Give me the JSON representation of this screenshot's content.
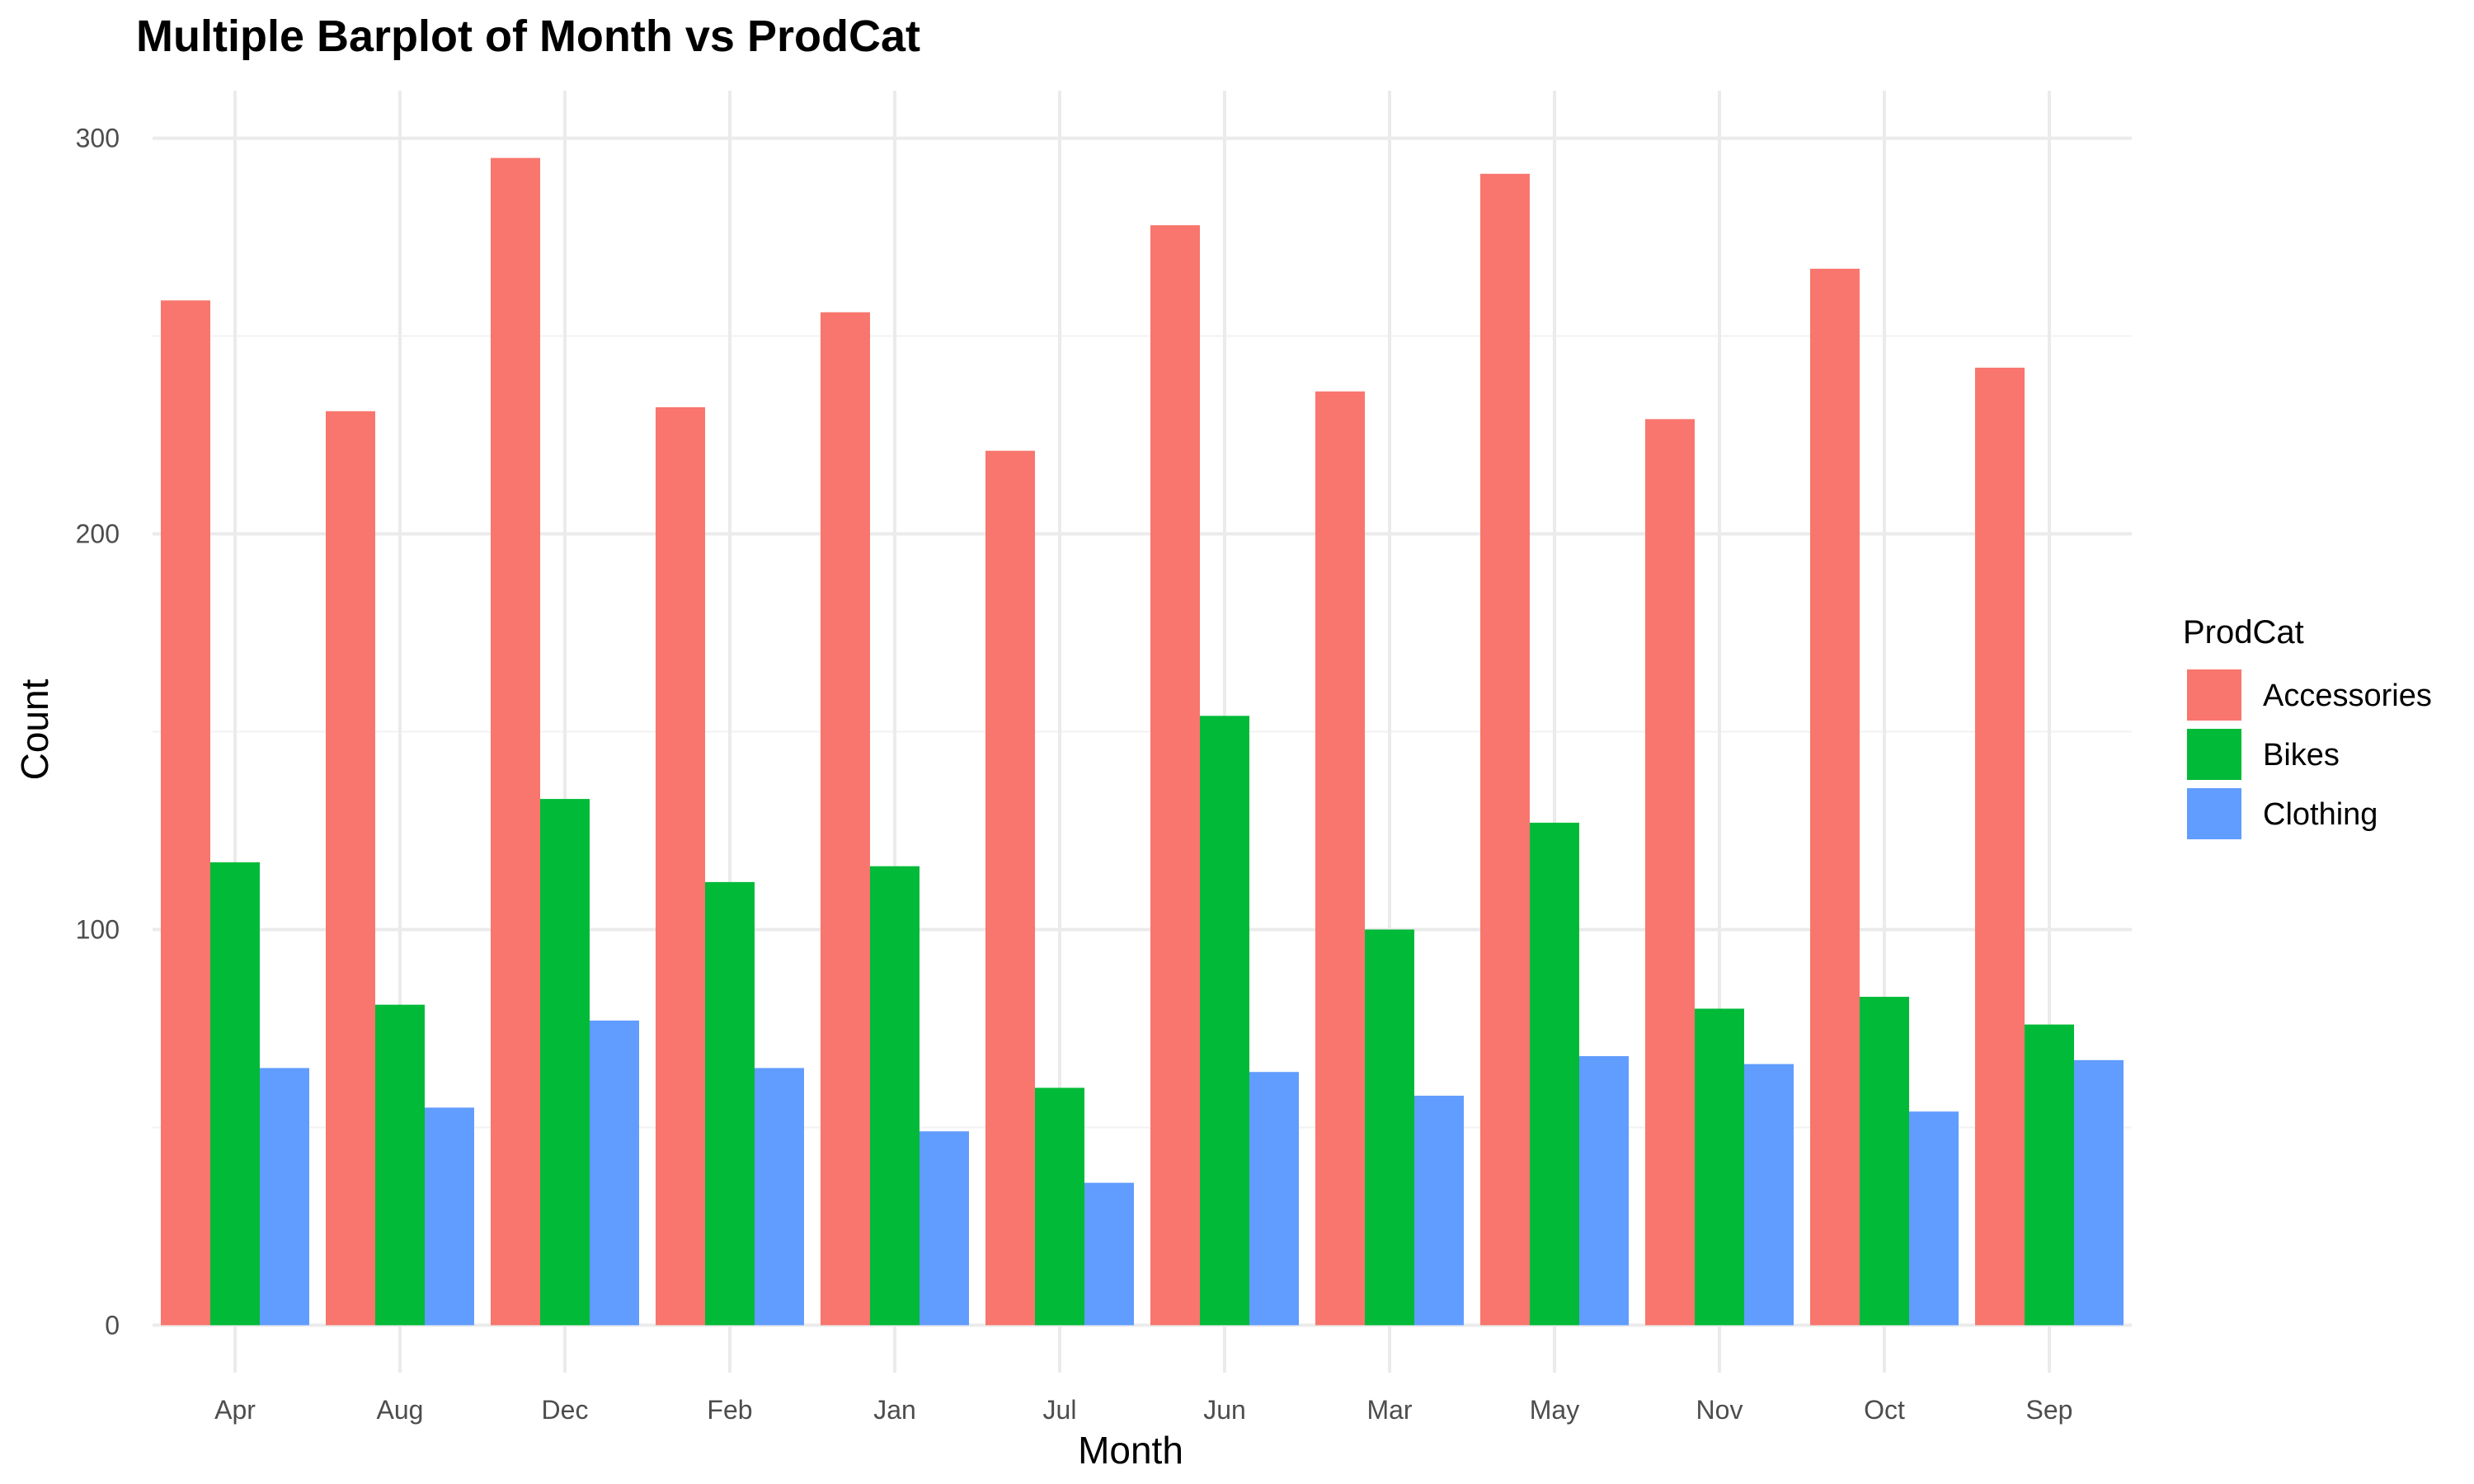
{
  "chart_data": {
    "type": "bar",
    "title": "Multiple Barplot of Month vs ProdCat",
    "xlabel": "Month",
    "ylabel": "Count",
    "ylim": [
      -12,
      312
    ],
    "yticks": [
      0,
      100,
      200,
      300
    ],
    "categories": [
      "Apr",
      "Aug",
      "Dec",
      "Feb",
      "Jan",
      "Jul",
      "Jun",
      "Mar",
      "May",
      "Nov",
      "Oct",
      "Sep"
    ],
    "series": [
      {
        "name": "Accessories",
        "color": "#F8766D",
        "values": [
          259,
          231,
          295,
          232,
          256,
          221,
          278,
          236,
          291,
          229,
          267,
          242
        ]
      },
      {
        "name": "Bikes",
        "color": "#00BA38",
        "values": [
          117,
          81,
          133,
          112,
          116,
          60,
          154,
          100,
          127,
          80,
          83,
          76
        ]
      },
      {
        "name": "Clothing",
        "color": "#619CFF",
        "values": [
          65,
          55,
          77,
          65,
          49,
          36,
          64,
          58,
          68,
          66,
          54,
          67
        ]
      }
    ],
    "legend": {
      "title": "ProdCat",
      "position": "right"
    },
    "grid": true
  }
}
